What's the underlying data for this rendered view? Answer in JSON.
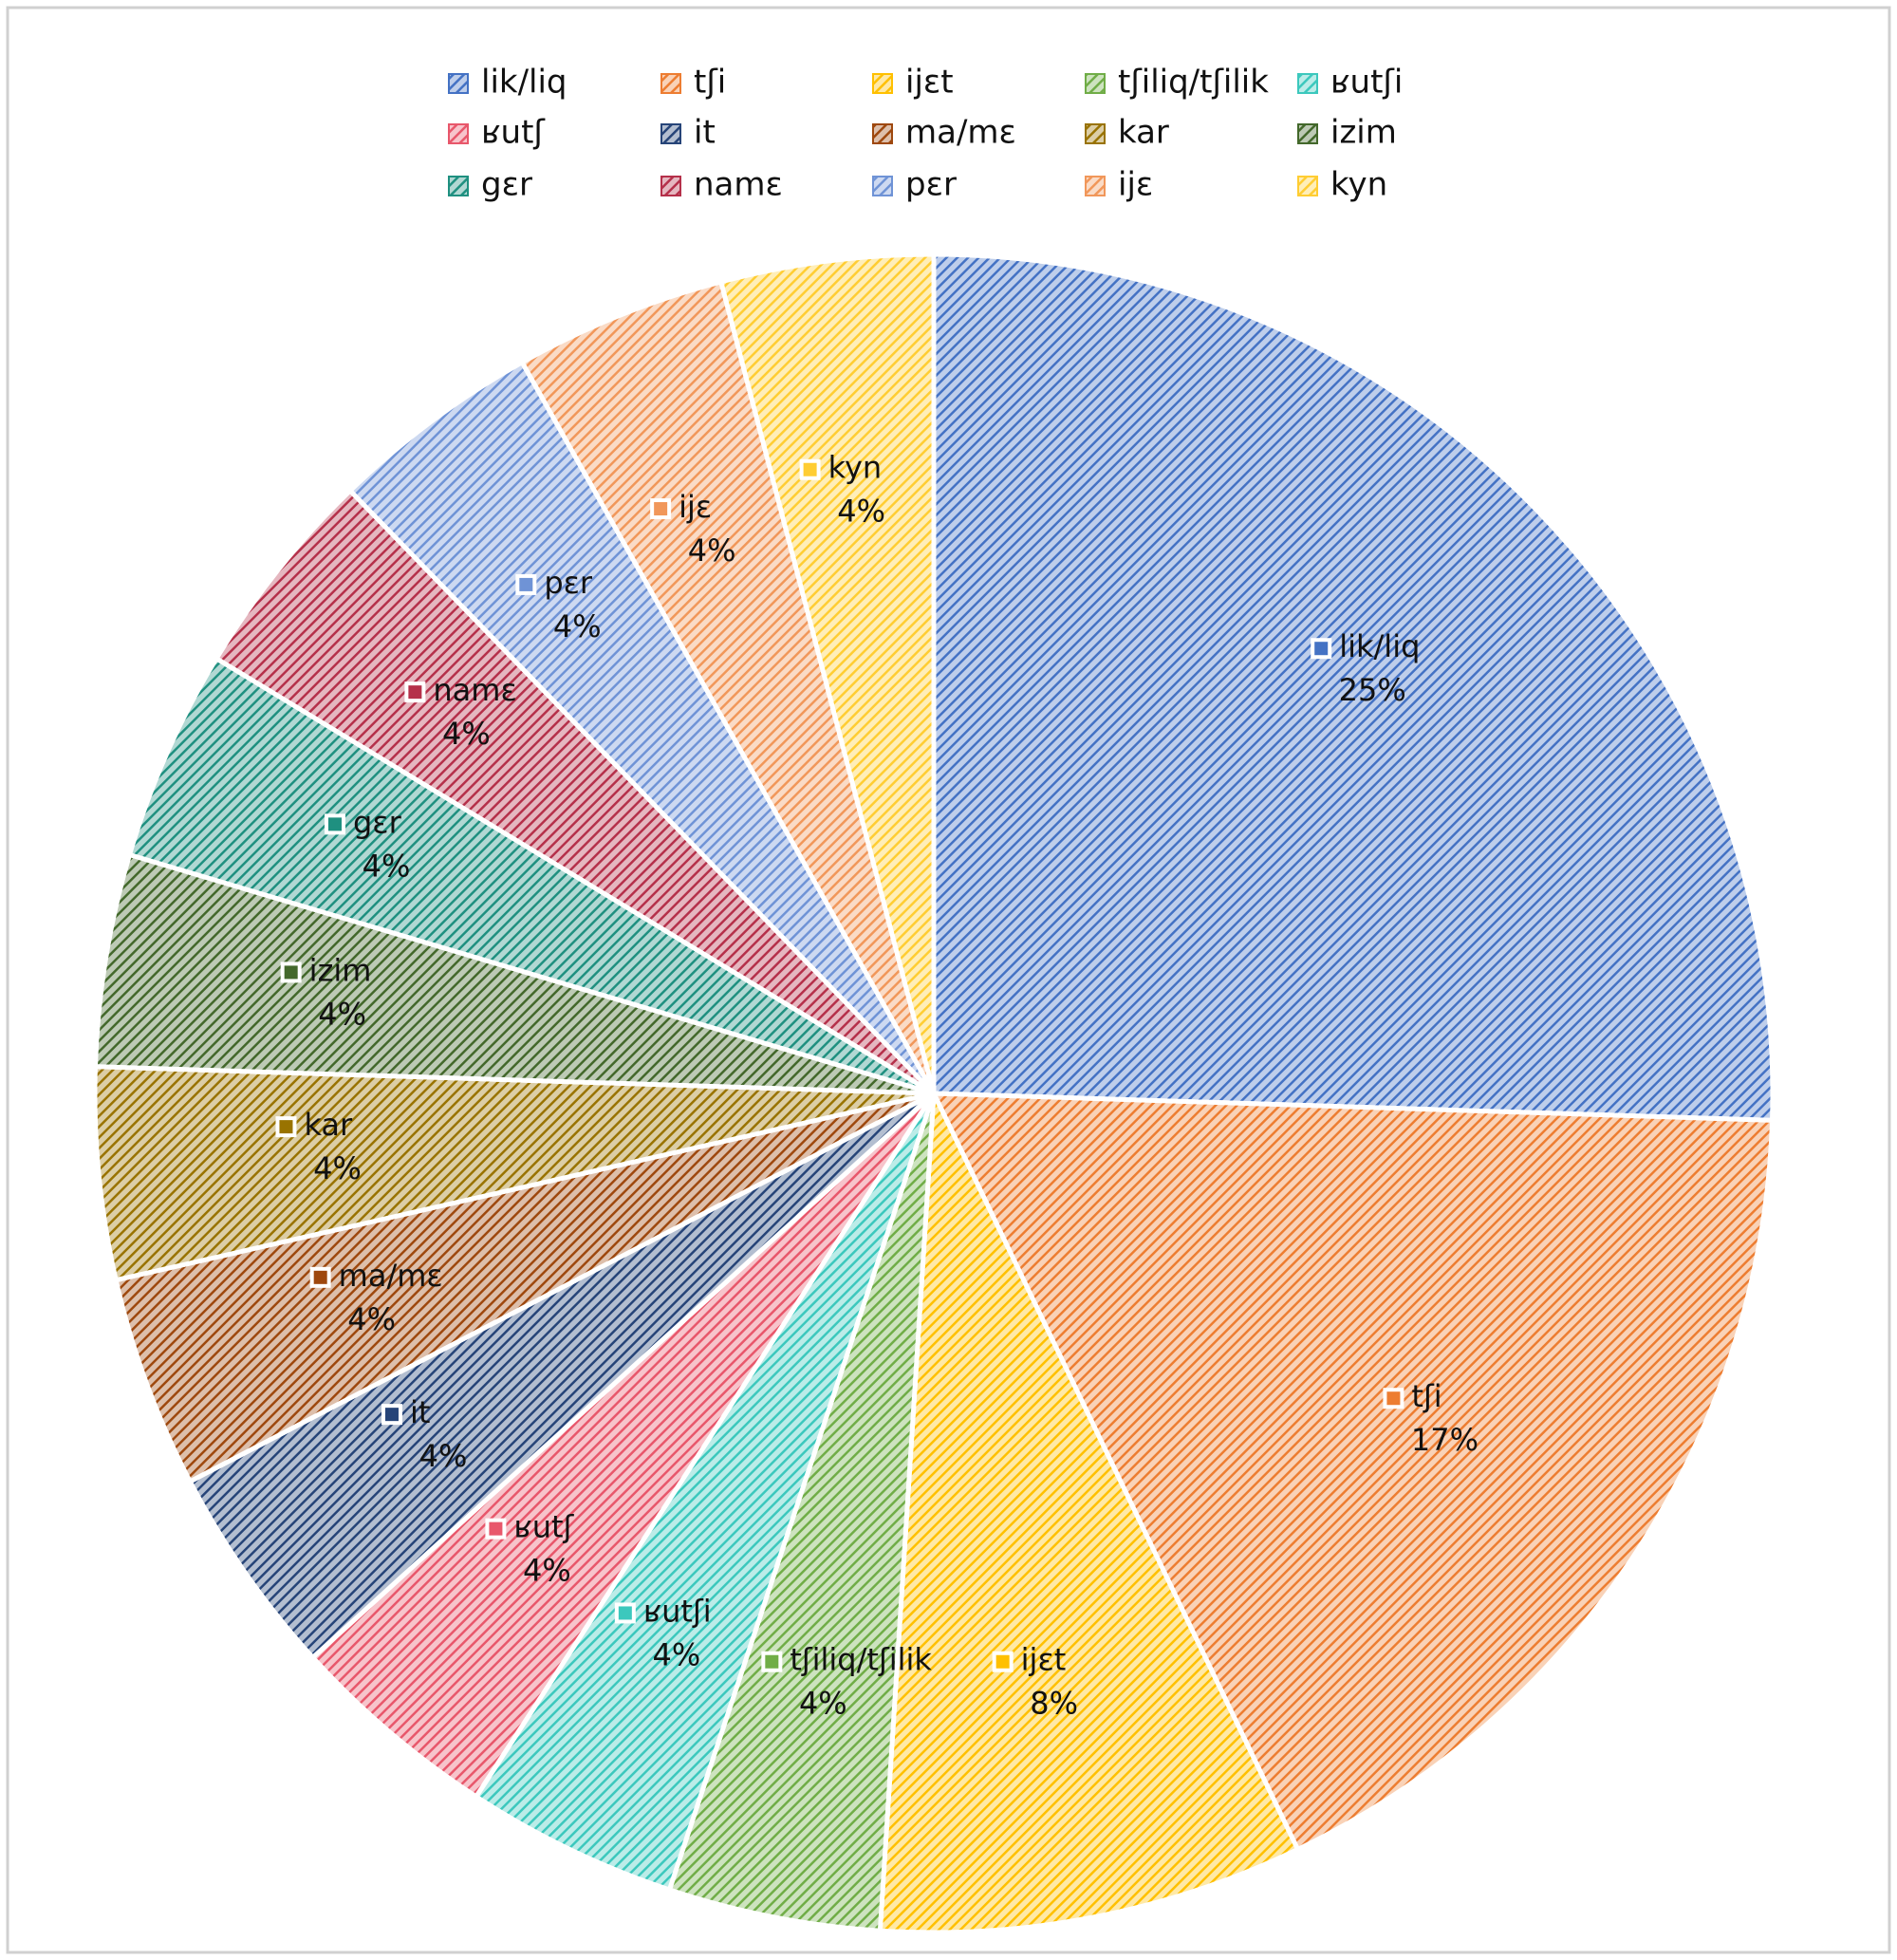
{
  "chart_data": {
    "type": "pie",
    "categories": [
      "lik/liq",
      "tʃi",
      "ijɛt",
      "tʃiliq/tʃilik",
      "ʁutʃi",
      "ʁutʃ",
      "it",
      "ma/mɛ",
      "kar",
      "izim",
      "gɛr",
      "namɛ",
      "pɛr",
      "ijɛ",
      "kyn"
    ],
    "values": [
      25,
      17,
      8,
      4,
      4,
      4,
      4,
      4,
      4,
      4,
      4,
      4,
      4,
      4,
      4
    ],
    "value_labels": [
      "25%",
      "17%",
      "8%",
      "4%",
      "4%",
      "4%",
      "4%",
      "4%",
      "4%",
      "4%",
      "4%",
      "4%",
      "4%",
      "4%",
      "4%"
    ],
    "colors": [
      "#4472c4",
      "#ed7d31",
      "#ffc000",
      "#70ad47",
      "#3cc8bd",
      "#e8576b",
      "#264478",
      "#9e480e",
      "#997300",
      "#43682b",
      "#1f9080",
      "#b5304a",
      "#6f93d6",
      "#f1975a",
      "#ffcd33"
    ],
    "legend": "top"
  }
}
